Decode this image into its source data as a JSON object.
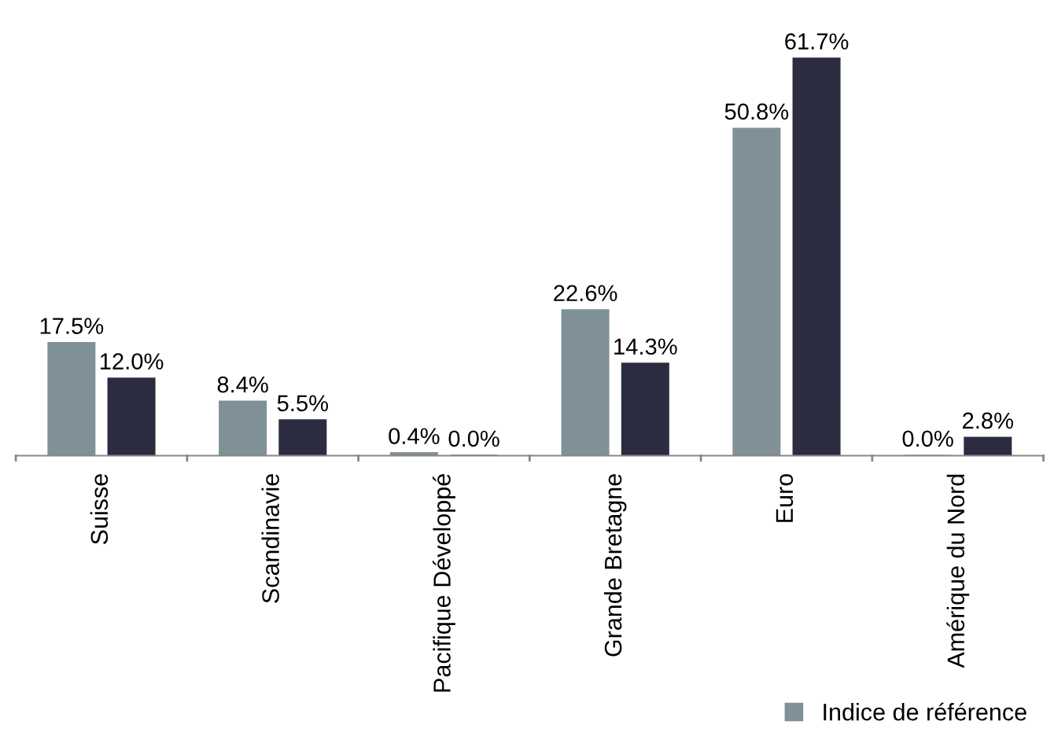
{
  "chart_data": {
    "type": "bar",
    "categories": [
      "Suisse",
      "Scandinavie",
      "Pacifique Développé",
      "Grande Bretagne",
      "Euro",
      "Amérique du Nord"
    ],
    "series": [
      {
        "name": "Indice de référence",
        "color": "#7f9196",
        "values": [
          17.5,
          8.4,
          0.4,
          22.6,
          50.8,
          0.0
        ],
        "value_labels": [
          "17.5%",
          "8.4%",
          "0.4%",
          "22.6%",
          "50.8%",
          "0.0%"
        ]
      },
      {
        "color": "#2b2c40",
        "values": [
          12.0,
          5.5,
          0.0,
          14.3,
          61.7,
          2.8
        ],
        "value_labels": [
          "12.0%",
          "5.5%",
          "0.0%",
          "14.3%",
          "61.7%",
          "2.8%"
        ]
      }
    ],
    "legend": "bottom right",
    "grid": false
  }
}
